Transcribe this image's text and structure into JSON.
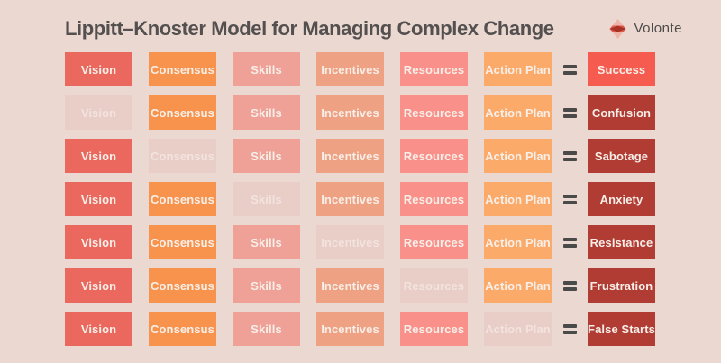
{
  "header": {
    "title": "Lippitt–Knoster Model for Managing Complex Change",
    "logo": {
      "text": "Volonte",
      "icon": "volonte-diamond-logo-icon"
    }
  },
  "model": {
    "factors": [
      "Vision",
      "Consensus",
      "Skills",
      "Incentives",
      "Resources",
      "Action Plan"
    ],
    "equals_symbol": "=",
    "rows": [
      {
        "missing_factor": null,
        "result": "Success"
      },
      {
        "missing_factor": "Vision",
        "result": "Confusion"
      },
      {
        "missing_factor": "Consensus",
        "result": "Sabotage"
      },
      {
        "missing_factor": "Skills",
        "result": "Anxiety"
      },
      {
        "missing_factor": "Incentives",
        "result": "Resistance"
      },
      {
        "missing_factor": "Resources",
        "result": "Frustration"
      },
      {
        "missing_factor": "Action Plan",
        "result": "False Starts"
      }
    ]
  },
  "colors": {
    "background": "#ebd8d1",
    "title_text": "#53504f",
    "box_text": "#f7efe8",
    "equals_sign": "#4a4a48",
    "factor_colors": {
      "Vision": "#ea685e",
      "Consensus": "#f8934e",
      "Skills": "#efa097",
      "Incentives": "#efa183",
      "Resources": "#f9908a",
      "Action Plan": "#fbaa6a"
    },
    "result_success": "#f65b4f",
    "result_negative": "#b03c34",
    "faded_box": "#e9cdc7",
    "faded_text": "rgba(255,250,247,0.48)",
    "logo_text": "#4c4a4a",
    "logo_pink": "#f0b3aa",
    "logo_red": "#dd5a4e",
    "logo_dark_red": "#a93226"
  }
}
